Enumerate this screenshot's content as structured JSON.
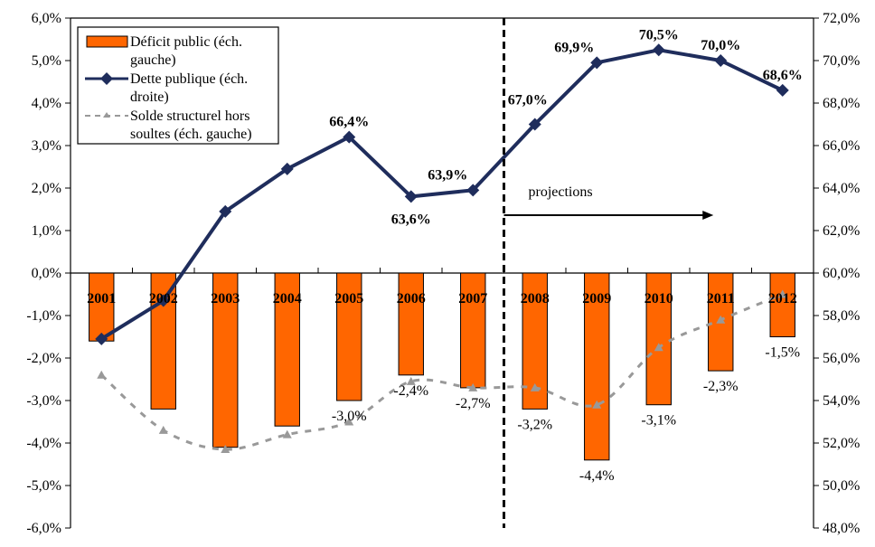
{
  "chart_data": {
    "type": "bar",
    "title": "",
    "xlabel": "",
    "ylabel": "",
    "y2label": "",
    "categories": [
      "2001",
      "2002",
      "2003",
      "2004",
      "2005",
      "2006",
      "2007",
      "2008",
      "2009",
      "2010",
      "2011",
      "2012"
    ],
    "ylim": [
      -6,
      6
    ],
    "y2lim": [
      48,
      72
    ],
    "y_ticks": [
      "6,0%",
      "5,0%",
      "4,0%",
      "3,0%",
      "2,0%",
      "1,0%",
      "0,0%",
      "-1,0%",
      "-2,0%",
      "-3,0%",
      "-4,0%",
      "-5,0%",
      "-6,0%"
    ],
    "y2_ticks": [
      "72,0%",
      "70,0%",
      "68,0%",
      "66,0%",
      "64,0%",
      "62,0%",
      "60,0%",
      "58,0%",
      "56,0%",
      "54,0%",
      "52,0%",
      "50,0%",
      "48,0%"
    ],
    "grid": false,
    "legend_position": "top-left",
    "series": [
      {
        "name": "Déficit public (éch. gauche)",
        "legend_lines": [
          "Déficit public (éch.",
          "gauche)"
        ],
        "type": "bar",
        "axis": "left",
        "color": "#FF6600",
        "values": [
          -1.6,
          -3.2,
          -4.1,
          -3.6,
          -3.0,
          -2.4,
          -2.7,
          -3.2,
          -4.4,
          -3.1,
          -2.3,
          -1.5
        ],
        "labels": [
          "",
          "",
          "",
          "",
          "-3,0%",
          "-2,4%",
          "-2,7%",
          "-3,2%",
          "-4,4%",
          "-3,1%",
          "-2,3%",
          "-1,5%"
        ]
      },
      {
        "name": "Dette publique (éch. droite)",
        "legend_lines": [
          "Dette publique (éch.",
          "droite)"
        ],
        "type": "line",
        "axis": "right",
        "color": "#1F2D5C",
        "marker": "diamond",
        "values": [
          56.9,
          58.7,
          62.9,
          64.9,
          66.4,
          63.6,
          63.9,
          67.0,
          69.9,
          70.5,
          70.0,
          68.6
        ],
        "labels": [
          "",
          "",
          "",
          "",
          "66,4%",
          "63,6%",
          "63,9%",
          "67,0%",
          "69,9%",
          "70,5%",
          "70,0%",
          "68,6%"
        ]
      },
      {
        "name": "Solde structurel hors soultes (éch. gauche)",
        "legend_lines": [
          "Solde structurel hors",
          "soultes (éch. gauche)"
        ],
        "type": "line",
        "axis": "left",
        "color": "#999999",
        "style": "dashed",
        "marker": "triangle",
        "values": [
          -2.4,
          -3.7,
          -4.15,
          -3.8,
          -3.5,
          -2.55,
          -2.7,
          -2.7,
          -3.1,
          -1.75,
          -1.1,
          -0.5
        ]
      }
    ],
    "annotations": {
      "projections_label": "projections",
      "projections_start_after": "2007",
      "projections_arrow_end": "2011"
    }
  }
}
